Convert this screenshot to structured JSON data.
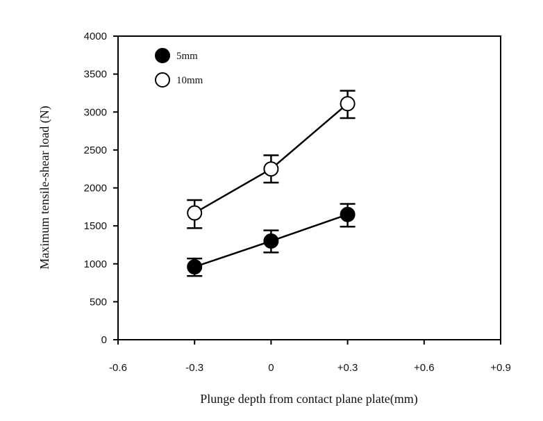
{
  "chart_data": {
    "type": "line",
    "title": "",
    "xlabel": "Plunge depth from contact plane plate(mm)",
    "ylabel": "Maximum tensile-shear load (N)",
    "xlim": [
      -0.6,
      0.9
    ],
    "ylim": [
      0,
      4000
    ],
    "x_ticks": [
      -0.6,
      -0.3,
      0,
      0.3,
      0.6,
      0.9
    ],
    "x_tick_labels": [
      "-0.6",
      "-0.3",
      "0",
      "+0.3",
      "+0.6",
      "+0.9"
    ],
    "y_ticks": [
      0,
      500,
      1000,
      1500,
      2000,
      2500,
      3000,
      3500,
      4000
    ],
    "y_tick_labels": [
      "0",
      "500",
      "1000",
      "1500",
      "2000",
      "2500",
      "3000",
      "3500",
      "4000"
    ],
    "grid": false,
    "legend_position": "top-left",
    "series": [
      {
        "name": "5mm",
        "marker": "filled-circle",
        "x": [
          -0.3,
          0,
          0.3
        ],
        "y": [
          960,
          1300,
          1650
        ],
        "err_low": [
          840,
          1150,
          1490
        ],
        "err_high": [
          1070,
          1440,
          1790
        ]
      },
      {
        "name": "10mm",
        "marker": "open-circle",
        "x": [
          -0.3,
          0,
          0.3
        ],
        "y": [
          1670,
          2250,
          3110
        ],
        "err_low": [
          1470,
          2070,
          2920
        ],
        "err_high": [
          1840,
          2430,
          3280
        ]
      }
    ]
  }
}
